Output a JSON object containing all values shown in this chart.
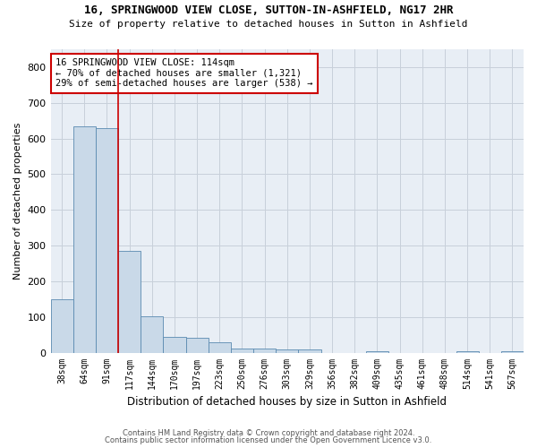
{
  "title1": "16, SPRINGWOOD VIEW CLOSE, SUTTON-IN-ASHFIELD, NG17 2HR",
  "title2": "Size of property relative to detached houses in Sutton in Ashfield",
  "xlabel": "Distribution of detached houses by size in Sutton in Ashfield",
  "ylabel": "Number of detached properties",
  "footnote1": "Contains HM Land Registry data © Crown copyright and database right 2024.",
  "footnote2": "Contains public sector information licensed under the Open Government Licence v3.0.",
  "annotation_title": "16 SPRINGWOOD VIEW CLOSE: 114sqm",
  "annotation_line1": "← 70% of detached houses are smaller (1,321)",
  "annotation_line2": "29% of semi-detached houses are larger (538) →",
  "bar_categories": [
    "38sqm",
    "64sqm",
    "91sqm",
    "117sqm",
    "144sqm",
    "170sqm",
    "197sqm",
    "223sqm",
    "250sqm",
    "276sqm",
    "303sqm",
    "329sqm",
    "356sqm",
    "382sqm",
    "409sqm",
    "435sqm",
    "461sqm",
    "488sqm",
    "514sqm",
    "541sqm",
    "567sqm"
  ],
  "bar_values": [
    150,
    635,
    630,
    285,
    102,
    45,
    42,
    28,
    12,
    12,
    8,
    8,
    0,
    0,
    5,
    0,
    0,
    0,
    5,
    0,
    5
  ],
  "bar_color": "#c9d9e8",
  "bar_edge_color": "#5a8ab0",
  "vline_color": "#cc0000",
  "vline_x_index": 2.5,
  "annotation_box_color": "#cc0000",
  "annotation_text_color": "#000000",
  "background_color": "#ffffff",
  "plot_bg_color": "#e8eef5",
  "grid_color": "#c8d0da",
  "ylim": [
    0,
    850
  ],
  "yticks": [
    0,
    100,
    200,
    300,
    400,
    500,
    600,
    700,
    800
  ]
}
